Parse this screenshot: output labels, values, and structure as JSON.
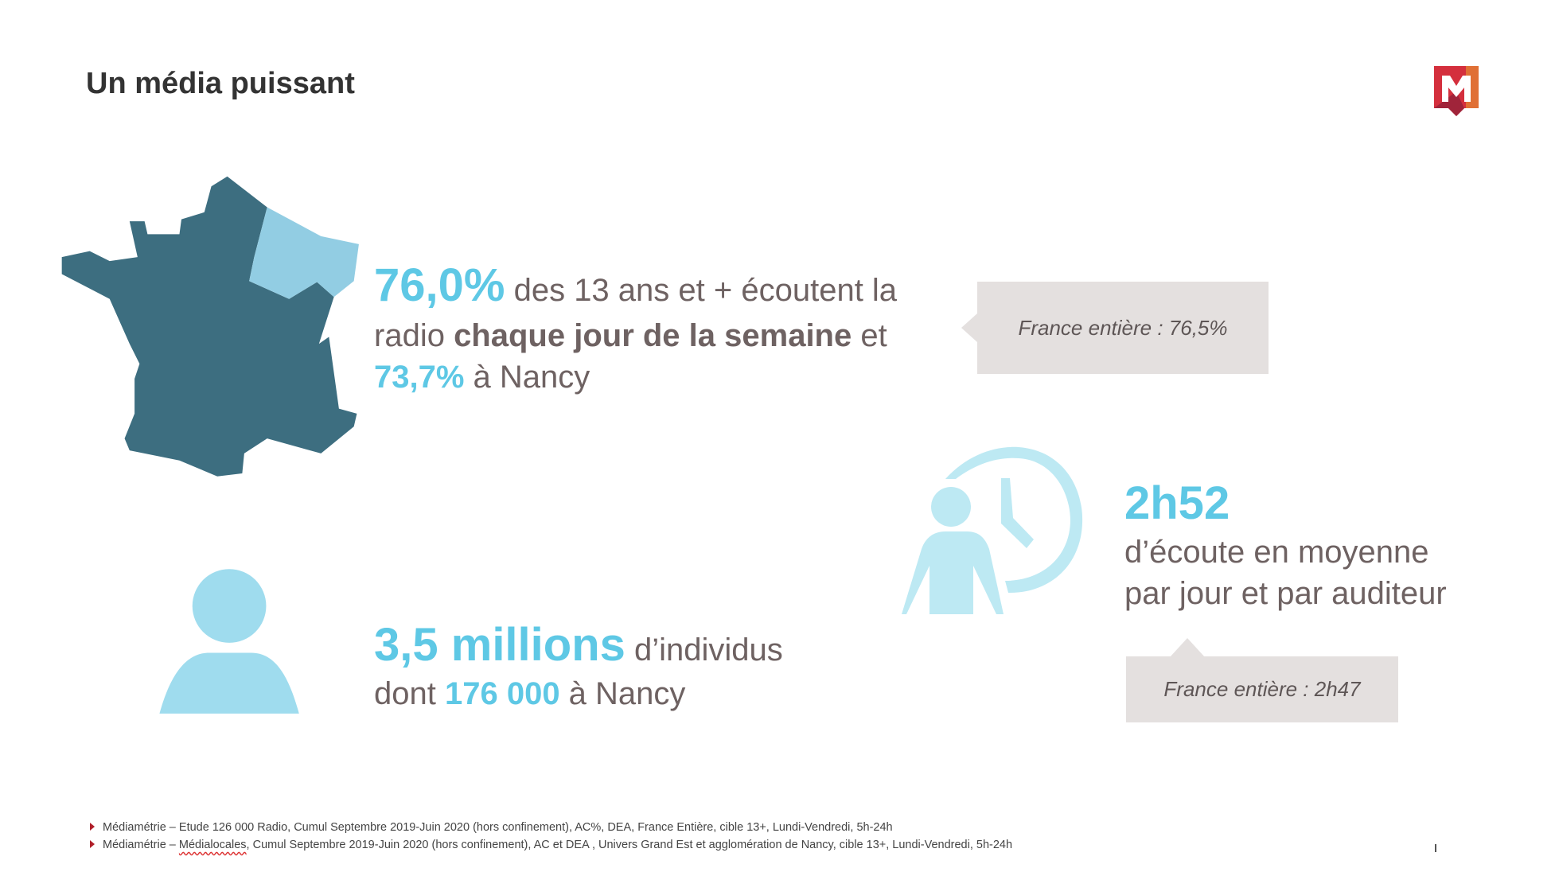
{
  "title": "Un média puissant",
  "logo": {
    "letter": "M",
    "colors": [
      "#d42f3d",
      "#a0243a",
      "#e07035"
    ]
  },
  "stat_reach": {
    "value": "76,0%",
    "text1": " des 13 ans et + écoutent la",
    "text2a": "radio ",
    "text2b": "chaque jour de la semaine",
    "text2c": " et",
    "value_nancy": "73,7%",
    "text3": " à Nancy",
    "comparison": "France entière : 76,5%"
  },
  "stat_time": {
    "value": "2h52",
    "line1": "d’écoute en moyenne",
    "line2": "par jour et par auditeur",
    "comparison": "France entière : 2h47"
  },
  "stat_people": {
    "value": "3,5 millions",
    "text1": " d’individus",
    "text2a": "dont ",
    "value_nancy": "176 000",
    "text2b": " à Nancy"
  },
  "footnotes": [
    {
      "text": "Médiamétrie – Etude 126 000 Radio, Cumul Septembre 2019-Juin 2020 (hors confinement), AC%, DEA, France Entière, cible 13+, Lundi-Vendredi, 5h-24h"
    },
    {
      "pre": "Médiamétrie – ",
      "flagged": "Médialocales",
      "post": ", Cumul Septembre 2019-Juin 2020 (hors confinement), AC et DEA , Univers Grand Est et agglomération de Nancy, cible 13+, Lundi-Vendredi, 5h-24h"
    }
  ],
  "colors": {
    "accent": "#5ec8e5",
    "text": "#6e6262",
    "map": "#3d6e80",
    "map_highlight": "#92cde3",
    "box": "#e4e0df"
  }
}
